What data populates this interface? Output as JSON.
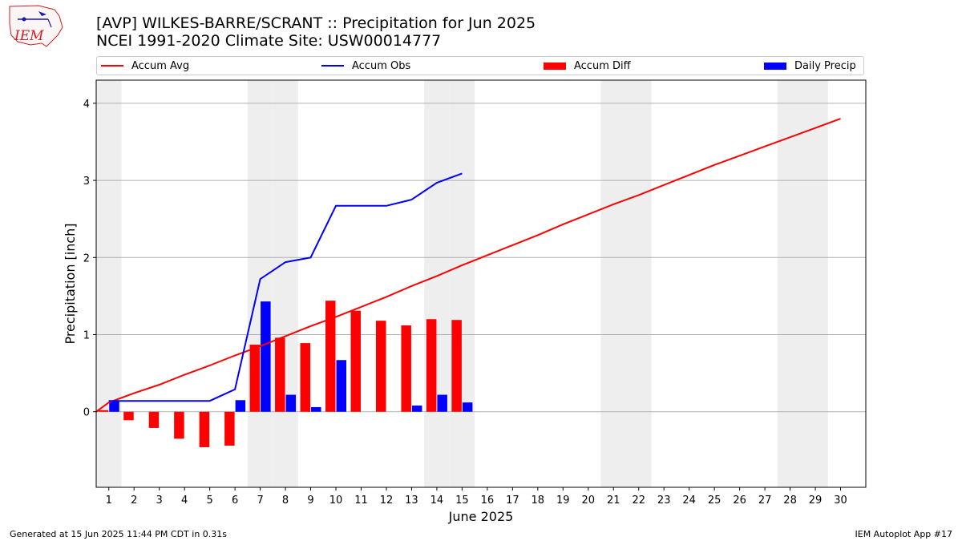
{
  "header": {
    "title_line1": "[AVP] WILKES-BARRE/SCRANT :: Precipitation for Jun 2025",
    "title_line2": "NCEI 1991-2020 Climate Site: USW00014777",
    "logo_text": "IEM"
  },
  "legend": {
    "items": [
      {
        "label": "Accum Avg",
        "color": "#ff0000",
        "kind": "line"
      },
      {
        "label": "Accum Obs",
        "color": "#0000ff",
        "kind": "line"
      },
      {
        "label": "Accum Diff",
        "color": "#ff0000",
        "kind": "box"
      },
      {
        "label": "Daily Precip",
        "color": "#0000ff",
        "kind": "box"
      }
    ]
  },
  "footer": {
    "generated": "Generated at 15 Jun 2025 11:44 PM CDT in 0.31s",
    "app": "IEM Autoplot App #17"
  },
  "chart_data": {
    "type": "bar",
    "xlabel": "June 2025",
    "ylabel": "Precipitation [inch]",
    "xlim": [
      0.5,
      31.0
    ],
    "ylim": [
      -0.98,
      4.3
    ],
    "yticks": [
      0,
      1,
      2,
      3,
      4
    ],
    "xticks": [
      1,
      2,
      3,
      4,
      5,
      6,
      7,
      8,
      9,
      10,
      11,
      12,
      13,
      14,
      15,
      16,
      17,
      18,
      19,
      20,
      21,
      22,
      23,
      24,
      25,
      26,
      27,
      28,
      29,
      30
    ],
    "grid": "y",
    "weekend_days": [
      1,
      7,
      8,
      14,
      15,
      21,
      22,
      28,
      29
    ],
    "series": [
      {
        "name": "Accum Avg",
        "type": "line",
        "color": "#ff0000",
        "x": [
          0.5,
          1,
          2,
          3,
          4,
          5,
          6,
          7,
          8,
          9,
          10,
          11,
          12,
          13,
          14,
          15,
          16,
          17,
          18,
          19,
          20,
          21,
          22,
          23,
          24,
          25,
          26,
          27,
          28,
          29,
          30
        ],
        "values": [
          0.0,
          0.12,
          0.24,
          0.35,
          0.48,
          0.6,
          0.73,
          0.85,
          0.98,
          1.11,
          1.23,
          1.36,
          1.49,
          1.63,
          1.76,
          1.9,
          2.03,
          2.16,
          2.29,
          2.43,
          2.56,
          2.69,
          2.81,
          2.94,
          3.07,
          3.2,
          3.32,
          3.44,
          3.56,
          3.68,
          3.8
        ]
      },
      {
        "name": "Accum Obs",
        "type": "line",
        "color": "#0000ff",
        "x": [
          1,
          2,
          3,
          4,
          5,
          6,
          7,
          8,
          9,
          10,
          11,
          12,
          13,
          14,
          15
        ],
        "values": [
          0.14,
          0.14,
          0.14,
          0.14,
          0.14,
          0.29,
          1.72,
          1.94,
          2.0,
          2.67,
          2.67,
          2.67,
          2.75,
          2.97,
          3.09
        ]
      },
      {
        "name": "Accum Diff",
        "type": "bar",
        "color": "#ff0000",
        "x": [
          1,
          2,
          3,
          4,
          5,
          6,
          7,
          8,
          9,
          10,
          11,
          12,
          13,
          14,
          15
        ],
        "values": [
          0.02,
          -0.11,
          -0.21,
          -0.35,
          -0.46,
          -0.44,
          0.87,
          0.96,
          0.89,
          1.44,
          1.31,
          1.18,
          1.12,
          1.2,
          1.19
        ]
      },
      {
        "name": "Daily Precip",
        "type": "bar",
        "color": "#0000ff",
        "x": [
          1,
          2,
          3,
          4,
          5,
          6,
          7,
          8,
          9,
          10,
          11,
          12,
          13,
          14,
          15
        ],
        "values": [
          0.14,
          0,
          0,
          0,
          0,
          0.15,
          1.43,
          0.22,
          0.06,
          0.67,
          0,
          0,
          0.08,
          0.22,
          0.12
        ]
      }
    ]
  }
}
